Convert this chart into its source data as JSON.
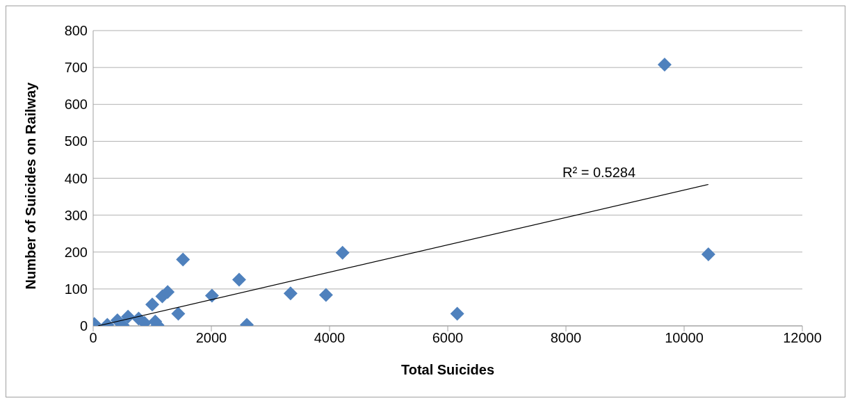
{
  "chart_data": {
    "type": "scatter",
    "xlabel": "Total Suicides",
    "ylabel": "Number of Suicides on Railway",
    "series": [
      {
        "marker": "diamond",
        "color": "#4f81bd",
        "x": [
          20,
          240,
          410,
          500,
          590,
          770,
          870,
          1000,
          1050,
          1090,
          1170,
          1260,
          1440,
          1520,
          2010,
          2470,
          2600,
          3340,
          3940,
          4220,
          6160,
          9670,
          10410
        ],
        "values": [
          5,
          3,
          15,
          2,
          25,
          20,
          8,
          58,
          12,
          2,
          80,
          92,
          33,
          180,
          82,
          125,
          3,
          88,
          84,
          198,
          33,
          708,
          194
        ]
      },
      {
        "type": "line",
        "marker": "none",
        "color": "#000000",
        "x": [
          80,
          10410
        ],
        "values": [
          0,
          383
        ]
      }
    ],
    "xlim": [
      0,
      12000
    ],
    "xticks": [
      0,
      2000,
      4000,
      6000,
      8000,
      10000,
      12000
    ],
    "ylim": [
      0,
      800
    ],
    "yticks": [
      0,
      100,
      200,
      300,
      400,
      500,
      600,
      700,
      800
    ],
    "grid": "y",
    "legend": false,
    "annotations": [
      "R² = 0.5284"
    ]
  }
}
